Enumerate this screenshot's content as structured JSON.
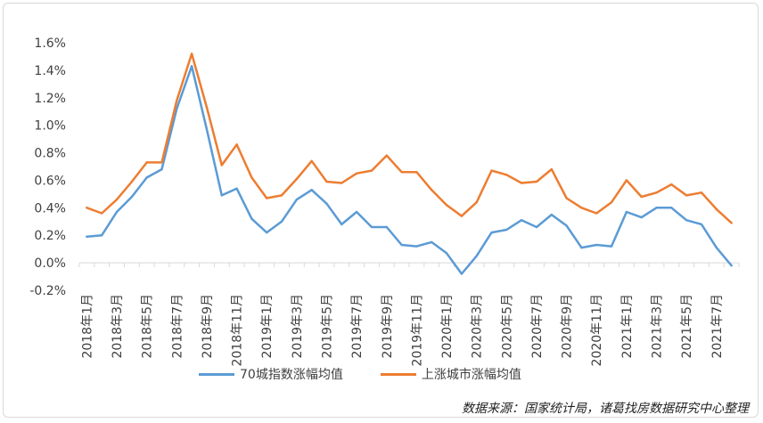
{
  "chart_data": {
    "type": "line",
    "x": [
      "2018年1月",
      "2018年2月",
      "2018年3月",
      "2018年4月",
      "2018年5月",
      "2018年6月",
      "2018年7月",
      "2018年8月",
      "2018年9月",
      "2018年10月",
      "2018年11月",
      "2018年12月",
      "2019年1月",
      "2019年2月",
      "2019年3月",
      "2019年4月",
      "2019年5月",
      "2019年6月",
      "2019年7月",
      "2019年8月",
      "2019年9月",
      "2019年10月",
      "2019年11月",
      "2019年12月",
      "2020年1月",
      "2020年2月",
      "2020年3月",
      "2020年4月",
      "2020年5月",
      "2020年6月",
      "2020年7月",
      "2020年8月",
      "2020年9月",
      "2020年10月",
      "2020年11月",
      "2020年12月",
      "2021年1月",
      "2021年2月",
      "2021年3月",
      "2021年4月",
      "2021年5月",
      "2021年6月",
      "2021年7月",
      "2021年8月"
    ],
    "x_tick_labels": [
      "2018年1月",
      "2018年3月",
      "2018年5月",
      "2018年7月",
      "2018年9月",
      "2018年11月",
      "2019年1月",
      "2019年3月",
      "2019年5月",
      "2019年7月",
      "2019年9月",
      "2019年11月",
      "2020年1月",
      "2020年3月",
      "2020年5月",
      "2020年7月",
      "2020年9月",
      "2020年11月",
      "2021年1月",
      "2021年3月",
      "2021年5月",
      "2021年7月"
    ],
    "y_ticks": [
      "-0.2%",
      "0.0%",
      "0.2%",
      "0.4%",
      "0.6%",
      "0.8%",
      "1.0%",
      "1.2%",
      "1.4%",
      "1.6%"
    ],
    "ylim": [
      -0.2,
      1.6
    ],
    "series": [
      {
        "name": "70城指数涨幅均值",
        "color": "#5b9bd5",
        "values": [
          0.19,
          0.2,
          0.37,
          0.48,
          0.62,
          0.68,
          1.12,
          1.43,
          0.97,
          0.49,
          0.54,
          0.32,
          0.22,
          0.3,
          0.46,
          0.53,
          0.43,
          0.28,
          0.37,
          0.26,
          0.26,
          0.13,
          0.12,
          0.15,
          0.07,
          -0.08,
          0.05,
          0.22,
          0.24,
          0.31,
          0.26,
          0.35,
          0.27,
          0.11,
          0.13,
          0.12,
          0.37,
          0.33,
          0.4,
          0.4,
          0.31,
          0.28,
          0.11,
          -0.02
        ]
      },
      {
        "name": "上涨城市涨幅均值",
        "color": "#ed7d31",
        "values": [
          0.4,
          0.36,
          0.46,
          0.59,
          0.73,
          0.73,
          1.18,
          1.52,
          1.13,
          0.71,
          0.86,
          0.62,
          0.47,
          0.49,
          0.61,
          0.74,
          0.59,
          0.58,
          0.65,
          0.67,
          0.78,
          0.66,
          0.66,
          0.53,
          0.42,
          0.34,
          0.44,
          0.67,
          0.64,
          0.58,
          0.59,
          0.68,
          0.47,
          0.4,
          0.36,
          0.44,
          0.6,
          0.48,
          0.51,
          0.57,
          0.49,
          0.51,
          0.39,
          0.29
        ]
      }
    ],
    "grid": false,
    "legend_position": "bottom"
  },
  "source_note": "数据来源：国家统计局，诸葛找房数据研究中心整理"
}
